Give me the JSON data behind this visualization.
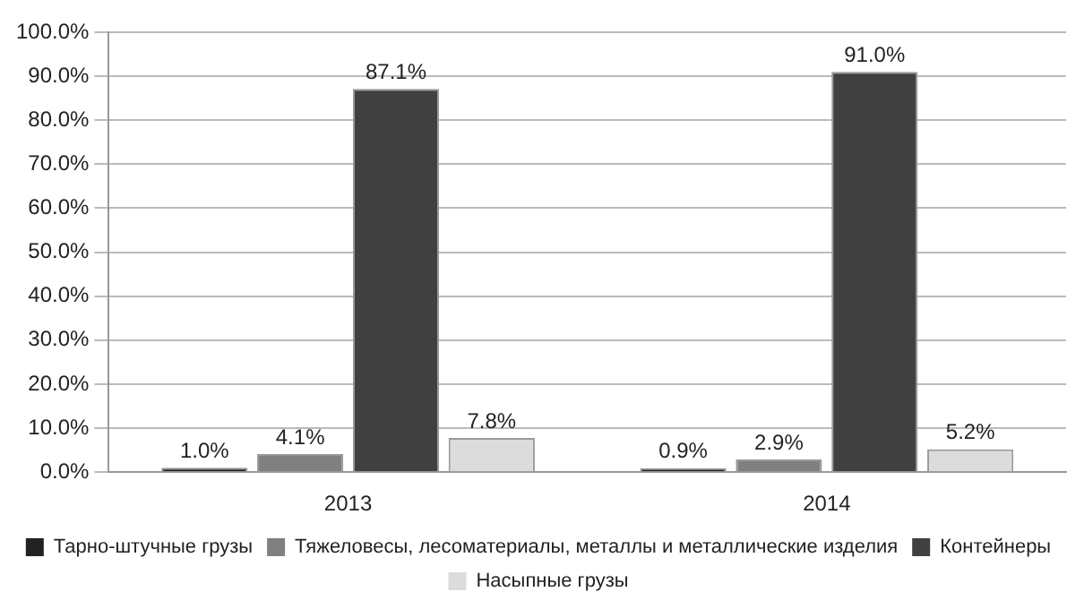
{
  "chart_data": {
    "type": "bar",
    "categories": [
      "2013",
      "2014"
    ],
    "series": [
      {
        "name": "Тарно-штучные грузы",
        "color": "#222222",
        "values": [
          1.0,
          0.9
        ],
        "value_labels": [
          "1.0%",
          "0.9%"
        ]
      },
      {
        "name": "Тяжеловесы, лесоматериалы, металлы и металлические изделия",
        "color": "#808080",
        "values": [
          4.1,
          2.9
        ],
        "value_labels": [
          "4.1%",
          "2.9%"
        ]
      },
      {
        "name": "Контейнеры",
        "color": "#404040",
        "values": [
          87.1,
          91.0
        ],
        "value_labels": [
          "87.1%",
          "91.0%"
        ]
      },
      {
        "name": "Насыпные грузы",
        "color": "#dcdcdc",
        "values": [
          7.8,
          5.2
        ],
        "value_labels": [
          "7.8%",
          "5.2%"
        ]
      }
    ],
    "ylim": [
      0,
      100
    ],
    "yticks": [
      {
        "value": 0,
        "label": "0.0%"
      },
      {
        "value": 10,
        "label": "10.0%"
      },
      {
        "value": 20,
        "label": "20.0%"
      },
      {
        "value": 30,
        "label": "30.0%"
      },
      {
        "value": 40,
        "label": "40.0%"
      },
      {
        "value": 50,
        "label": "50.0%"
      },
      {
        "value": 60,
        "label": "60.0%"
      },
      {
        "value": 70,
        "label": "70.0%"
      },
      {
        "value": 80,
        "label": "80.0%"
      },
      {
        "value": 90,
        "label": "90.0%"
      },
      {
        "value": 100,
        "label": "100.0%"
      }
    ],
    "grid": "y",
    "legend": "bottom"
  }
}
